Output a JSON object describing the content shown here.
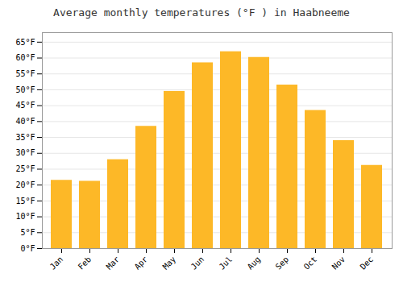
{
  "chart_data": {
    "type": "bar",
    "title": "Average monthly temperatures (°F ) in Haabneeme",
    "categories": [
      "Jan",
      "Feb",
      "Mar",
      "Apr",
      "May",
      "Jun",
      "Jul",
      "Aug",
      "Sep",
      "Oct",
      "Nov",
      "Dec"
    ],
    "values": [
      21.5,
      21.2,
      28.0,
      38.5,
      49.5,
      58.5,
      62.0,
      60.2,
      51.5,
      43.5,
      34.0,
      26.2
    ],
    "color": "#FDB827",
    "ylim": [
      0,
      68
    ],
    "yticks": [
      {
        "value": 0,
        "label": "0°F"
      },
      {
        "value": 5,
        "label": "5°F"
      },
      {
        "value": 10,
        "label": "10°F"
      },
      {
        "value": 15,
        "label": "15°F"
      },
      {
        "value": 20,
        "label": "20°F"
      },
      {
        "value": 25,
        "label": "25°F"
      },
      {
        "value": 30,
        "label": "30°F"
      },
      {
        "value": 35,
        "label": "35°F"
      },
      {
        "value": 40,
        "label": "40°F"
      },
      {
        "value": 45,
        "label": "45°F"
      },
      {
        "value": 50,
        "label": "50°F"
      },
      {
        "value": 55,
        "label": "55°F"
      },
      {
        "value": 60,
        "label": "60°F"
      },
      {
        "value": 65,
        "label": "65°F"
      }
    ],
    "grid": true
  }
}
